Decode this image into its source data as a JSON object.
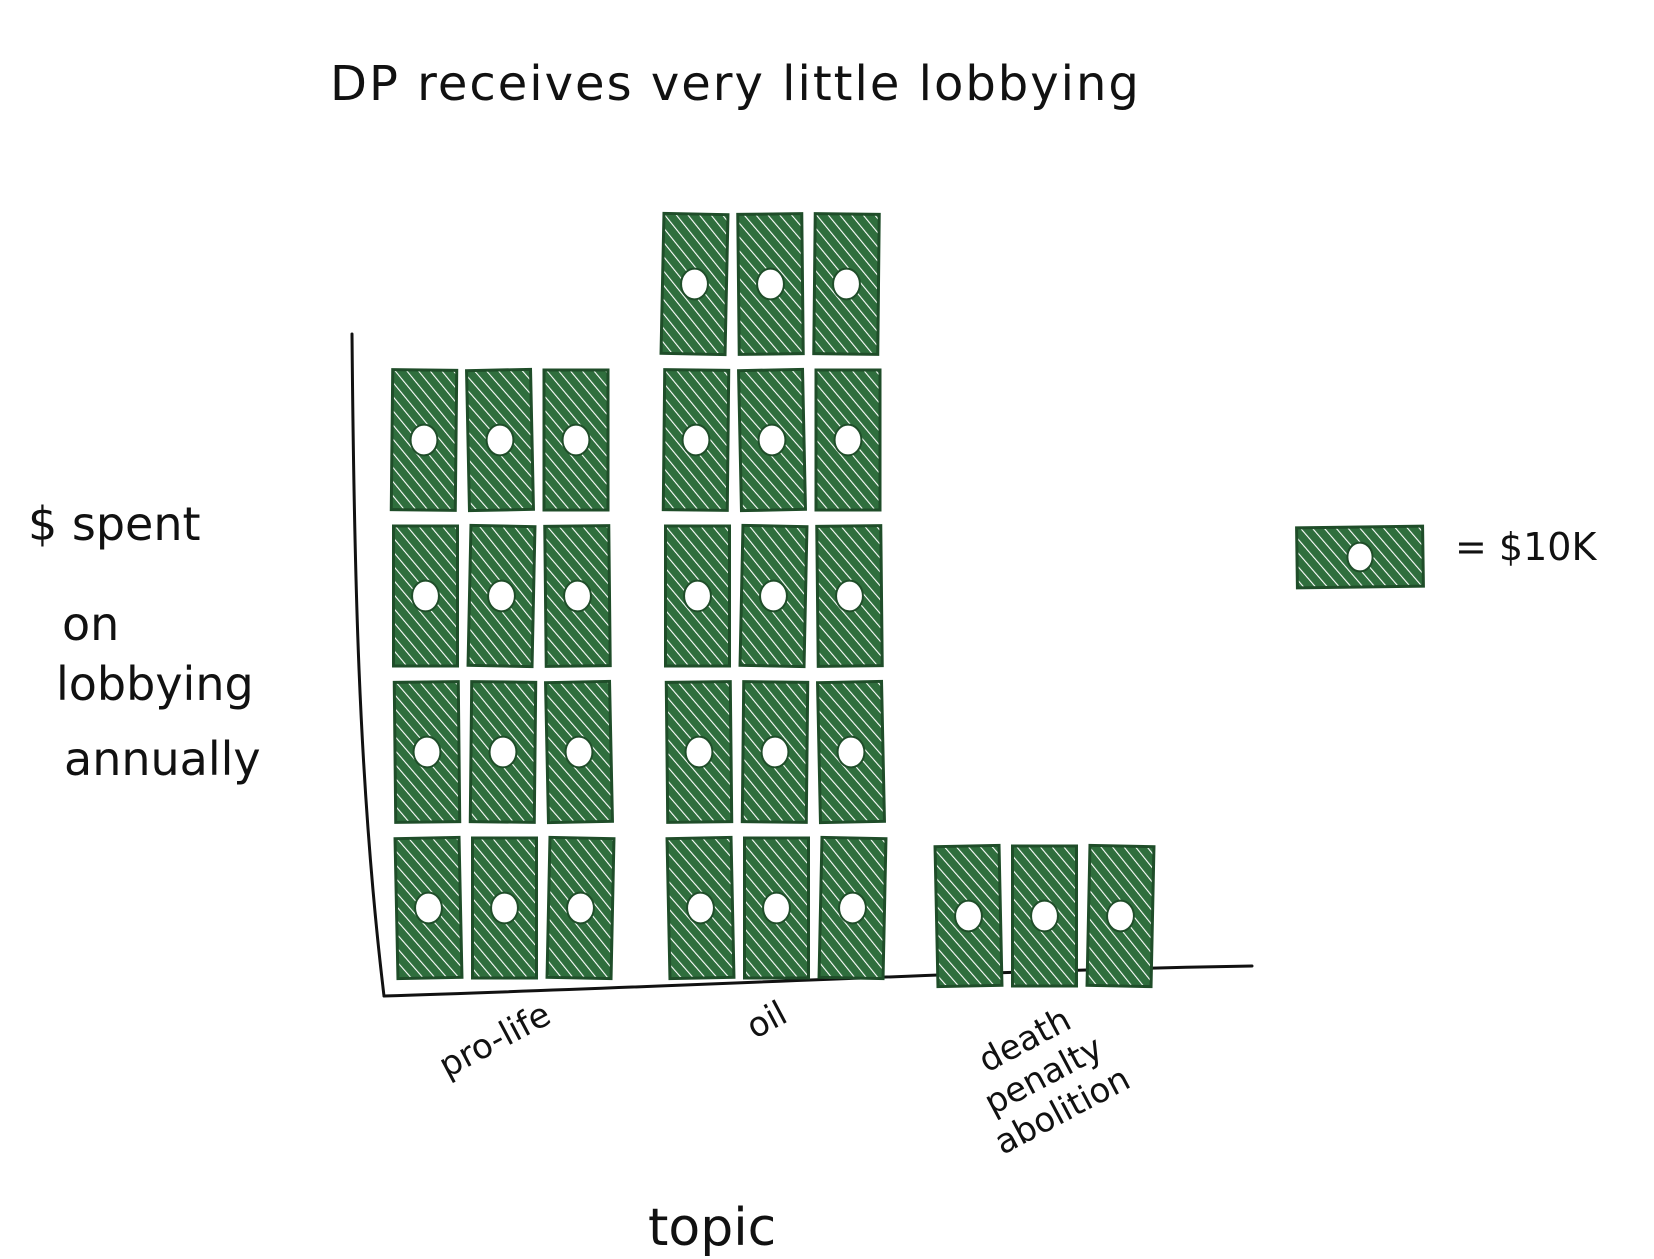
{
  "chart_data": {
    "type": "bar",
    "style": "pictogram",
    "title": "DP receives very little lobbying",
    "xlabel": "topic",
    "ylabel": "$ spent on lobbying annually",
    "ylabel_lines": [
      "$ spent",
      "on",
      "lobbying",
      "annually"
    ],
    "categories": [
      "pro-life",
      "oil",
      "death penalty abolition"
    ],
    "category_label_lines": [
      [
        "pro-life"
      ],
      [
        "oil"
      ],
      [
        "death",
        "penalty",
        "abolition"
      ]
    ],
    "values": [
      120000,
      150000,
      30000
    ],
    "units_per_icon": 10000,
    "icon_columns": 3,
    "legend": {
      "icon": "money-bill-icon",
      "label": "= $10K",
      "position": "right"
    },
    "colors": {
      "bill": "#2f6e3d",
      "bill_dark": "#1f4d29",
      "ink": "#111111",
      "background": "#ffffff"
    },
    "grid": false
  }
}
